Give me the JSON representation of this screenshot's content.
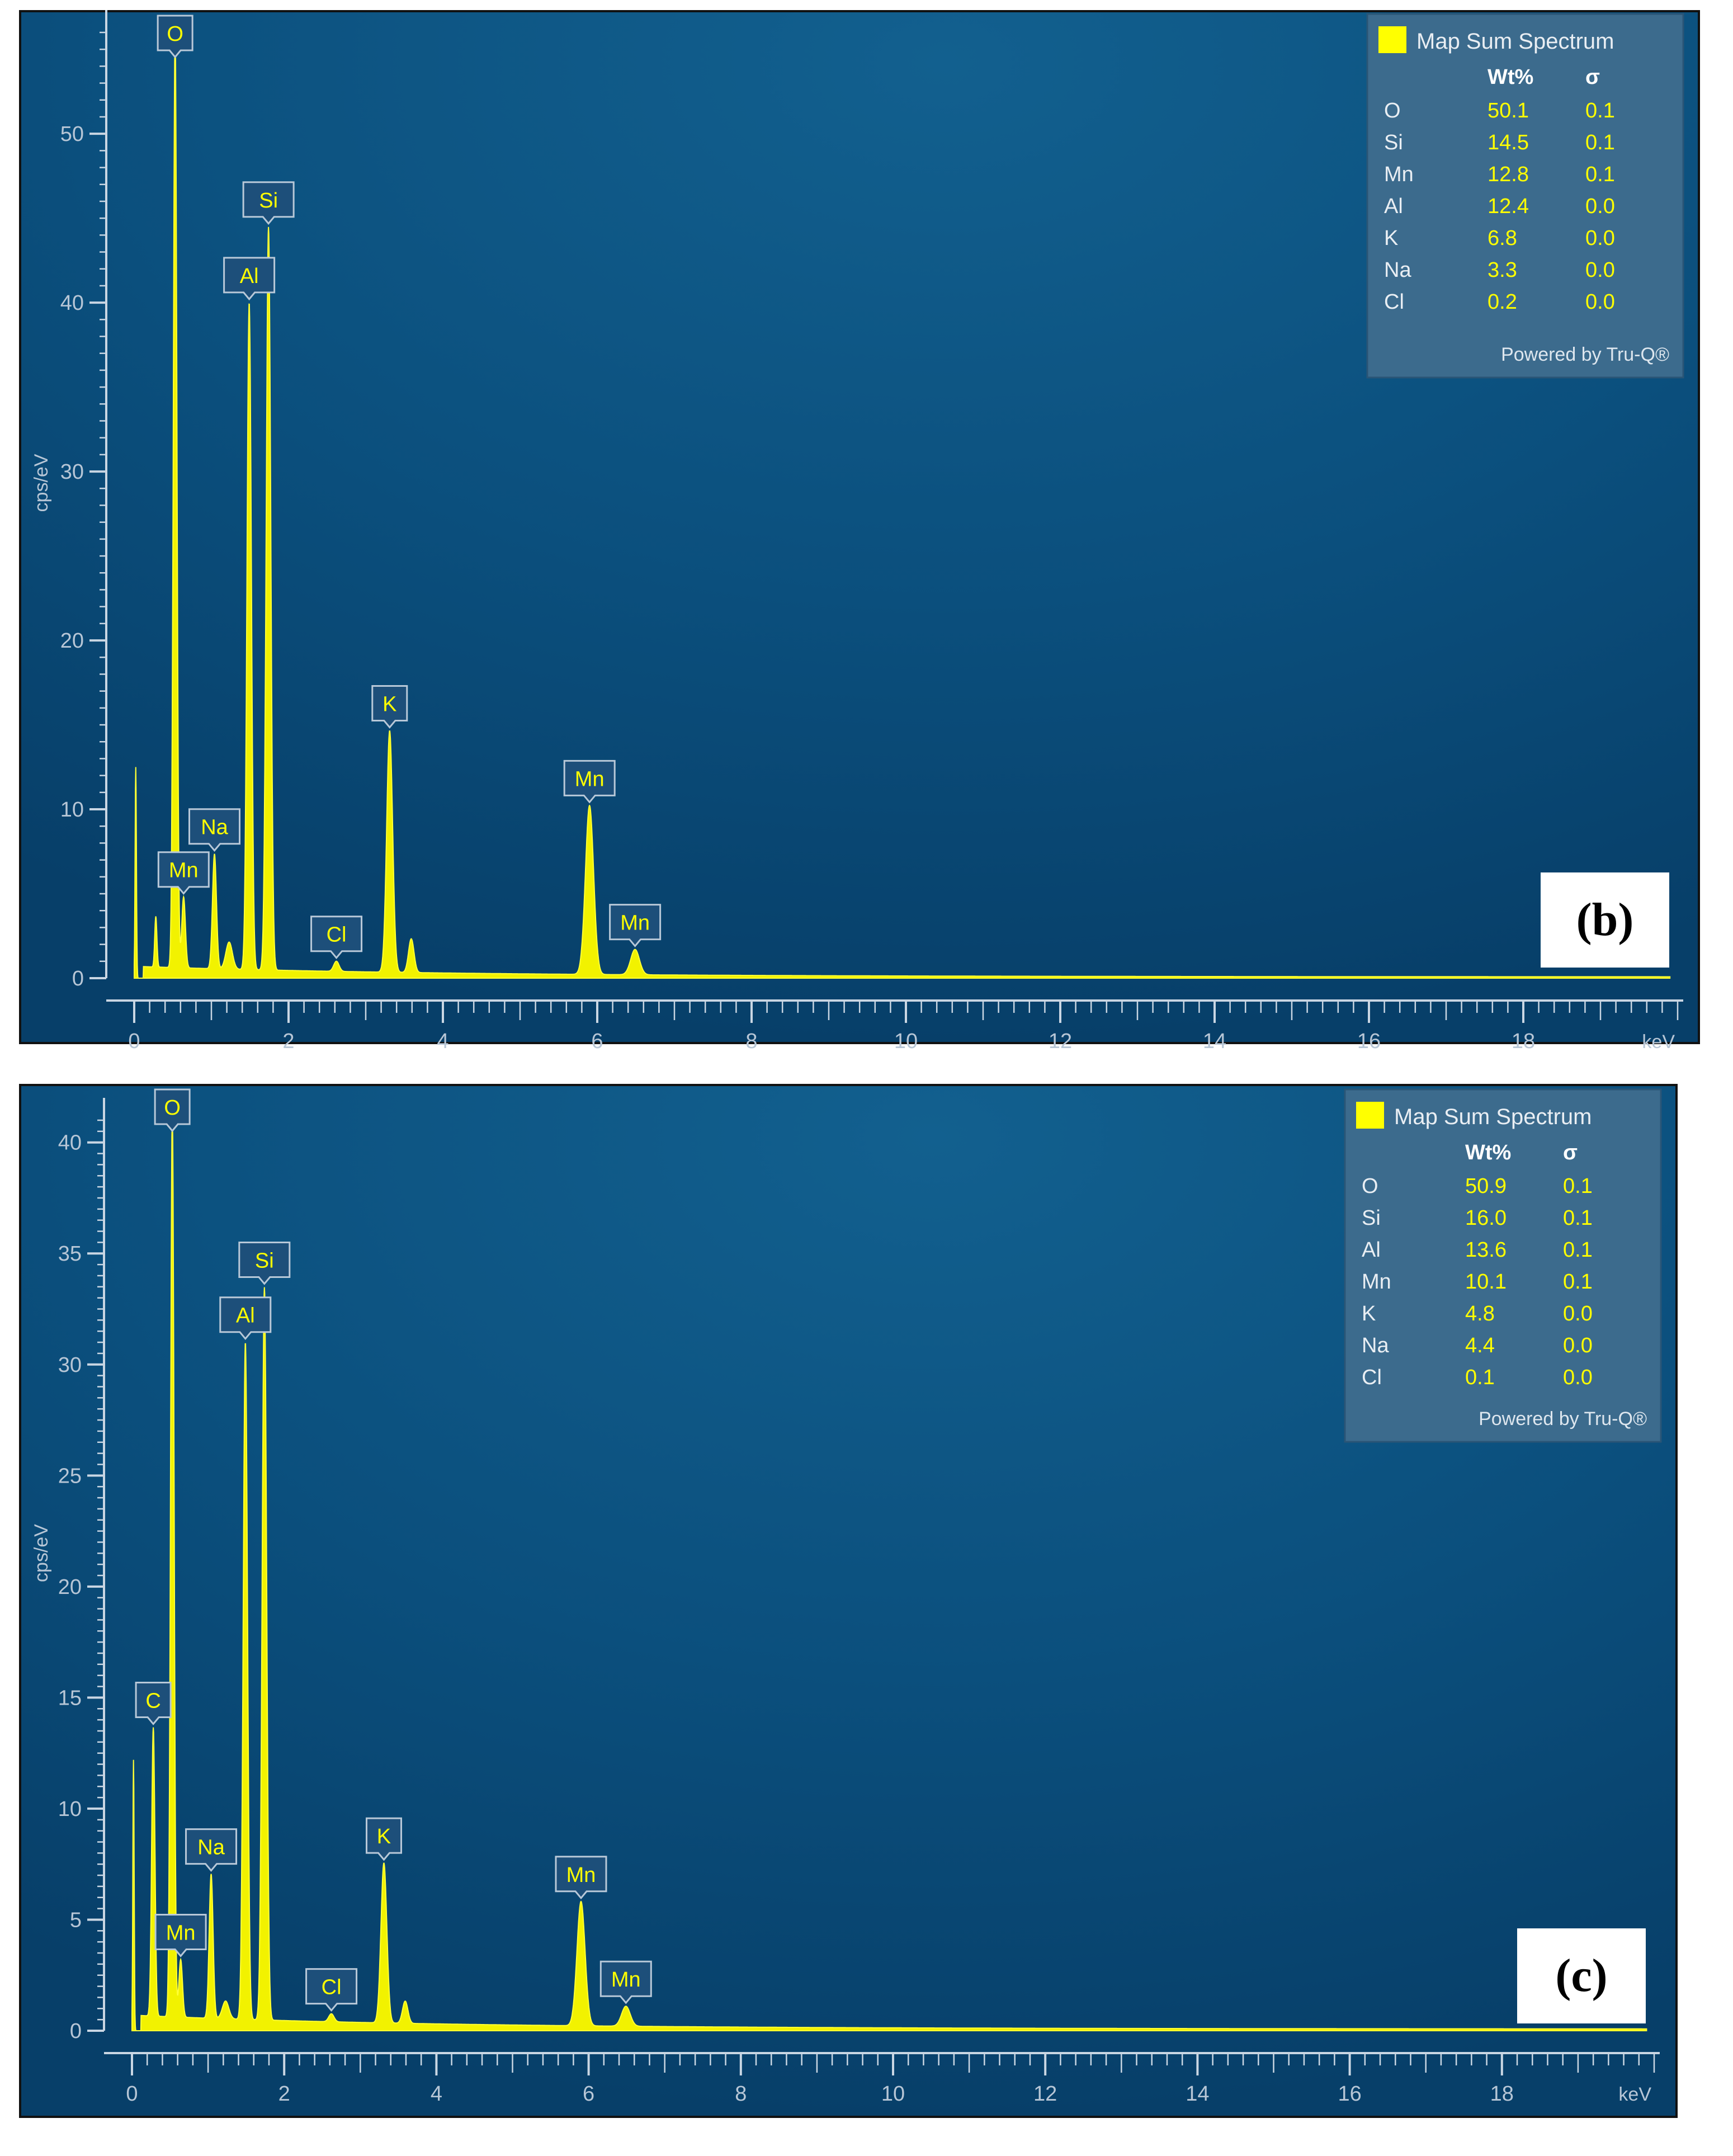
{
  "chart_data": [
    {
      "type": "area",
      "panel_label": "(b)",
      "ylabel": "cps/eV",
      "xlabel": "keV",
      "xlim": [
        0,
        20
      ],
      "ylim": [
        0,
        56
      ],
      "x_ticks": [
        "0",
        "2",
        "4",
        "6",
        "8",
        "10",
        "12",
        "14",
        "16",
        "18"
      ],
      "y_ticks": [
        "0",
        "10",
        "20",
        "30",
        "40",
        "50"
      ],
      "peaks": [
        {
          "label": "O",
          "x": 0.53,
          "y": 55.5
        },
        {
          "label": "Si",
          "x": 1.74,
          "y": 44
        },
        {
          "label": "Al",
          "x": 1.49,
          "y": 39.5
        },
        {
          "label": "K",
          "x": 3.31,
          "y": 14.3
        },
        {
          "label": "Mn",
          "x": 5.9,
          "y": 10
        },
        {
          "label": "Na",
          "x": 1.04,
          "y": 6.8
        },
        {
          "label": "Mn",
          "x": 0.64,
          "y": 4.2
        },
        {
          "label": "Cl",
          "x": 2.62,
          "y": 1.0
        },
        {
          "label": "Mn",
          "x": 6.49,
          "y": 1.5
        }
      ],
      "legend": {
        "title": "Map Sum Spectrum",
        "col_wt": "Wt%",
        "col_sigma": "σ",
        "rows": [
          {
            "el": "O",
            "wt": "50.1",
            "sigma": "0.1"
          },
          {
            "el": "Si",
            "wt": "14.5",
            "sigma": "0.1"
          },
          {
            "el": "Mn",
            "wt": "12.8",
            "sigma": "0.1"
          },
          {
            "el": "Al",
            "wt": "12.4",
            "sigma": "0.0"
          },
          {
            "el": "K",
            "wt": "6.8",
            "sigma": "0.0"
          },
          {
            "el": "Na",
            "wt": "3.3",
            "sigma": "0.0"
          },
          {
            "el": "Cl",
            "wt": "0.2",
            "sigma": "0.0"
          }
        ],
        "footer": "Powered by Tru-Q®",
        "swatch_color": "#ffff00"
      }
    },
    {
      "type": "area",
      "panel_label": "(c)",
      "ylabel": "cps/eV",
      "xlabel": "keV",
      "xlim": [
        0,
        20
      ],
      "ylim": [
        0,
        41
      ],
      "x_ticks": [
        "0",
        "2",
        "4",
        "6",
        "8",
        "10",
        "12",
        "14",
        "16",
        "18"
      ],
      "y_ticks": [
        "0",
        "5",
        "10",
        "15",
        "20",
        "25",
        "30",
        "35",
        "40"
      ],
      "peaks": [
        {
          "label": "O",
          "x": 0.53,
          "y": 41
        },
        {
          "label": "Si",
          "x": 1.74,
          "y": 33
        },
        {
          "label": "Al",
          "x": 1.49,
          "y": 30.5
        },
        {
          "label": "C",
          "x": 0.28,
          "y": 13
        },
        {
          "label": "Na",
          "x": 1.04,
          "y": 6.5
        },
        {
          "label": "K",
          "x": 3.31,
          "y": 7.2
        },
        {
          "label": "Mn",
          "x": 5.9,
          "y": 5.6
        },
        {
          "label": "Mn",
          "x": 0.64,
          "y": 2.6
        },
        {
          "label": "Cl",
          "x": 2.62,
          "y": 0.6
        },
        {
          "label": "Mn",
          "x": 6.49,
          "y": 0.9
        }
      ],
      "legend": {
        "title": "Map Sum Spectrum",
        "col_wt": "Wt%",
        "col_sigma": "σ",
        "rows": [
          {
            "el": "O",
            "wt": "50.9",
            "sigma": "0.1"
          },
          {
            "el": "Si",
            "wt": "16.0",
            "sigma": "0.1"
          },
          {
            "el": "Al",
            "wt": "13.6",
            "sigma": "0.1"
          },
          {
            "el": "Mn",
            "wt": "10.1",
            "sigma": "0.1"
          },
          {
            "el": "K",
            "wt": "4.8",
            "sigma": "0.0"
          },
          {
            "el": "Na",
            "wt": "4.4",
            "sigma": "0.0"
          },
          {
            "el": "Cl",
            "wt": "0.1",
            "sigma": "0.0",
            "el_color": "#ff2a2a"
          }
        ],
        "footer": "Powered by Tru-Q®",
        "swatch_color": "#ffff00"
      }
    }
  ]
}
